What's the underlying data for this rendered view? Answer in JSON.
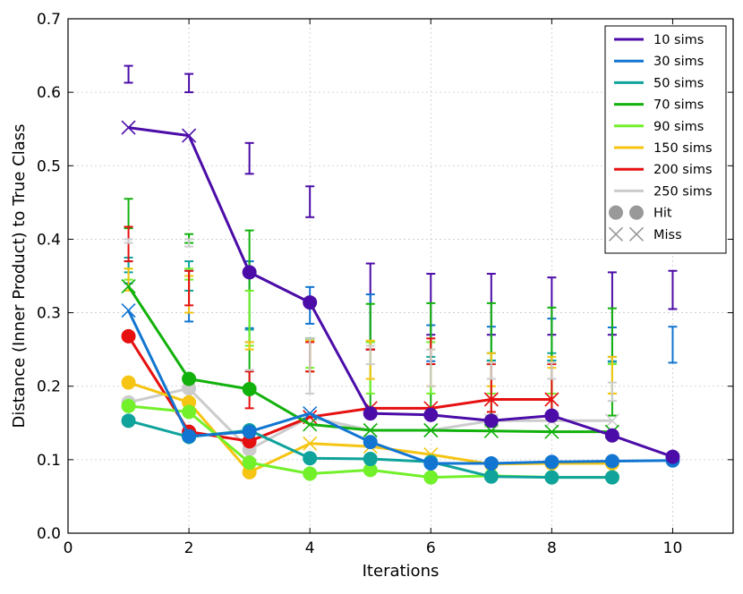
{
  "chart_data": {
    "type": "line",
    "title": "",
    "xlabel": "Iterations",
    "ylabel": "Distance (Inner Product) to True Class",
    "xlim": [
      0,
      11
    ],
    "ylim": [
      0,
      0.7
    ],
    "xticks": [
      "0",
      "2",
      "4",
      "6",
      "8",
      "10"
    ],
    "xtick_values": [
      0,
      2,
      4,
      6,
      8,
      10
    ],
    "yticks": [
      "0.0",
      "0.1",
      "0.2",
      "0.3",
      "0.4",
      "0.5",
      "0.6",
      "0.7"
    ],
    "ytick_values": [
      0,
      0.1,
      0.2,
      0.3,
      0.4,
      0.5,
      0.6,
      0.7
    ],
    "grid": true,
    "legend_position": "top-right",
    "marker_legend": [
      {
        "label": "Hit",
        "marker": "circle"
      },
      {
        "label": "Miss",
        "marker": "x"
      }
    ],
    "series": [
      {
        "name": "10 sims",
        "color": "#4b0ca8",
        "x": [
          1,
          2,
          3,
          4,
          5,
          6,
          7,
          8,
          9,
          10
        ],
        "values": [
          0.552,
          0.541,
          0.355,
          0.314,
          0.163,
          0.161,
          0.153,
          0.16,
          0.133,
          0.104
        ],
        "markers": [
          "x",
          "x",
          "o",
          "o",
          "o",
          "o",
          "o",
          "o",
          "o",
          "o"
        ],
        "err_low": [
          0.613,
          0.6,
          0.489,
          0.43,
          0.25,
          0.27,
          0.27,
          0.27,
          0.27,
          0.305
        ],
        "err_high": [
          0.636,
          0.625,
          0.531,
          0.472,
          0.367,
          0.353,
          0.353,
          0.348,
          0.355,
          0.357
        ]
      },
      {
        "name": "30 sims",
        "color": "#1175d1",
        "x": [
          1,
          2,
          3,
          4,
          5,
          6,
          7,
          8,
          9,
          10
        ],
        "values": [
          0.303,
          0.132,
          0.138,
          0.163,
          0.124,
          0.095,
          0.095,
          0.097,
          0.098,
          0.099
        ],
        "markers": [
          "x",
          "o",
          "o",
          "x",
          "o",
          "o",
          "o",
          "o",
          "o",
          "o"
        ],
        "err_low": [
          0.34,
          0.288,
          0.279,
          0.285,
          0.25,
          0.234,
          0.235,
          0.235,
          0.234,
          0.232
        ],
        "err_high": [
          0.37,
          0.357,
          0.37,
          0.335,
          0.325,
          0.283,
          0.281,
          0.292,
          0.28,
          0.281
        ]
      },
      {
        "name": "50 sims",
        "color": "#0fa39b",
        "x": [
          1,
          2,
          3,
          4,
          5,
          6,
          7,
          8,
          9
        ],
        "values": [
          0.153,
          0.131,
          0.14,
          0.102,
          0.101,
          0.097,
          0.077,
          0.076,
          0.076
        ],
        "markers": [
          "o",
          "o",
          "o",
          "o",
          "o",
          "o",
          "o",
          "o",
          "o"
        ],
        "err_low": [
          0.355,
          0.33,
          0.26,
          0.22,
          0.25,
          0.23,
          0.235,
          0.235,
          0.233
        ],
        "err_high": [
          0.375,
          0.37,
          0.277,
          0.265,
          0.26,
          0.24,
          0.245,
          0.245,
          0.24
        ]
      },
      {
        "name": "70 sims",
        "color": "#12b10c",
        "x": [
          1,
          2,
          3,
          4,
          5,
          6,
          7,
          8,
          9
        ],
        "values": [
          0.336,
          0.21,
          0.196,
          0.148,
          0.14,
          0.14,
          0.139,
          0.138,
          0.138
        ],
        "markers": [
          "x",
          "o",
          "o",
          "x",
          "x",
          "x",
          "x",
          "x",
          "x"
        ],
        "err_low": [
          0.415,
          0.395,
          0.19,
          0.265,
          0.16,
          0.16,
          0.16,
          0.16,
          0.16
        ],
        "err_high": [
          0.455,
          0.407,
          0.412,
          0.265,
          0.312,
          0.313,
          0.313,
          0.307,
          0.306
        ]
      },
      {
        "name": "90 sims",
        "color": "#72f02a",
        "x": [
          1,
          2,
          3,
          4,
          5,
          6,
          7,
          8,
          9
        ],
        "values": [
          0.173,
          0.165,
          0.096,
          0.081,
          0.086,
          0.076,
          0.078,
          0.076,
          0.076
        ],
        "markers": [
          "o",
          "o",
          "o",
          "o",
          "o",
          "o",
          "o",
          "o",
          "o"
        ],
        "err_low": [
          0.345,
          0.345,
          0.255,
          0.225,
          0.19,
          0.19,
          0.19,
          0.19,
          0.19
        ],
        "err_high": [
          0.36,
          0.36,
          0.33,
          0.262,
          0.26,
          0.26,
          0.23,
          0.23,
          0.23
        ]
      },
      {
        "name": "150 sims",
        "color": "#f6c412",
        "x": [
          1,
          2,
          3,
          4,
          5,
          6,
          7,
          8,
          9
        ],
        "values": [
          0.205,
          0.178,
          0.083,
          0.122,
          0.118,
          0.107,
          0.094,
          0.095,
          0.095
        ],
        "markers": [
          "o",
          "o",
          "o",
          "x",
          "x",
          "x",
          "o",
          "o",
          "o"
        ],
        "err_low": [
          0.33,
          0.3,
          0.25,
          0.22,
          0.21,
          0.2,
          0.2,
          0.225,
          0.19
        ],
        "err_high": [
          0.36,
          0.35,
          0.26,
          0.262,
          0.262,
          0.25,
          0.245,
          0.24,
          0.24
        ]
      },
      {
        "name": "200 sims",
        "color": "#e61010",
        "x": [
          1,
          2,
          3,
          4,
          5,
          6,
          7,
          8
        ],
        "values": [
          0.268,
          0.138,
          0.125,
          0.158,
          0.17,
          0.17,
          0.182,
          0.182
        ],
        "markers": [
          "o",
          "o",
          "o",
          "x",
          "x",
          "x",
          "x",
          "x"
        ],
        "err_low": [
          0.37,
          0.31,
          0.17,
          0.22,
          0.25,
          0.23,
          0.165,
          0.165
        ],
        "err_high": [
          0.417,
          0.357,
          0.22,
          0.26,
          0.25,
          0.265,
          0.23,
          0.23
        ]
      },
      {
        "name": "250 sims",
        "color": "#cccccc",
        "x": [
          1,
          2,
          3,
          4,
          5,
          6,
          7,
          8,
          9
        ],
        "values": [
          0.178,
          0.197,
          0.114,
          0.158,
          0.14,
          0.14,
          0.153,
          0.153,
          0.153
        ],
        "markers": [
          "o",
          "o",
          "o",
          "x",
          "x",
          "x",
          "x",
          "x",
          "x"
        ],
        "err_low": [
          0.395,
          0.39,
          0.222,
          0.19,
          0.23,
          0.2,
          0.21,
          0.21,
          0.18
        ],
        "err_high": [
          0.4,
          0.4,
          0.222,
          0.265,
          0.255,
          0.25,
          0.232,
          0.232,
          0.205
        ]
      }
    ]
  }
}
